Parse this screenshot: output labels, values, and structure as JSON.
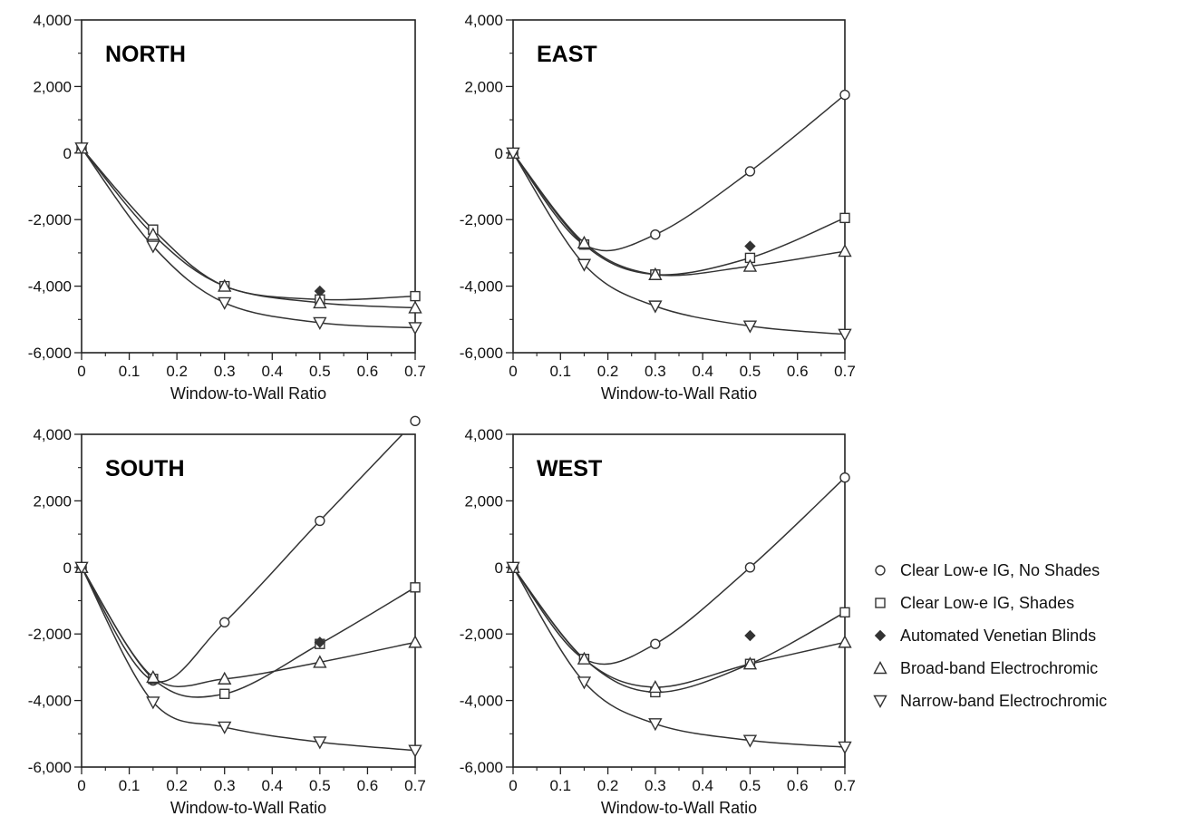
{
  "chart_data": [
    {
      "type": "line",
      "panel_label": "NORTH",
      "xlabel": "Window-to-Wall Ratio",
      "ylabel": "",
      "xlim": [
        0,
        0.7
      ],
      "ylim": [
        -6000,
        4000
      ],
      "xticks": [
        "0",
        "0.1",
        "0.2",
        "0.3",
        "0.4",
        "0.5",
        "0.6",
        "0.7"
      ],
      "yticks": [
        "4,000",
        "2,000",
        "0",
        "-2,000",
        "-4,000",
        "-6,000"
      ],
      "grid": false,
      "series": [
        {
          "name": "Clear Low-e IG, Shades",
          "marker": "square",
          "x": [
            0,
            0.15,
            0.3,
            0.5,
            0.7
          ],
          "y": [
            150,
            -2300,
            -4000,
            -4400,
            -4300
          ]
        },
        {
          "name": "Automated Venetian Blinds",
          "marker": "diamond",
          "x": [
            0.5
          ],
          "y": [
            -4150
          ]
        },
        {
          "name": "Broad-band Electrochromic",
          "marker": "triangle-up",
          "x": [
            0,
            0.15,
            0.3,
            0.5,
            0.7
          ],
          "y": [
            150,
            -2450,
            -4000,
            -4500,
            -4650
          ]
        },
        {
          "name": "Narrow-band Electrochromic",
          "marker": "triangle-down",
          "x": [
            0,
            0.15,
            0.3,
            0.5,
            0.7
          ],
          "y": [
            150,
            -2800,
            -4500,
            -5100,
            -5250
          ]
        }
      ]
    },
    {
      "type": "line",
      "panel_label": "EAST",
      "xlabel": "Window-to-Wall Ratio",
      "ylabel": "",
      "xlim": [
        0,
        0.7
      ],
      "ylim": [
        -6000,
        4000
      ],
      "xticks": [
        "0",
        "0.1",
        "0.2",
        "0.3",
        "0.4",
        "0.5",
        "0.6",
        "0.7"
      ],
      "yticks": [
        "4,000",
        "2,000",
        "0",
        "-2,000",
        "-4,000",
        "-6,000"
      ],
      "grid": false,
      "series": [
        {
          "name": "Clear Low-e IG, No Shades",
          "marker": "circle",
          "x": [
            0,
            0.15,
            0.3,
            0.5,
            0.7
          ],
          "y": [
            0,
            -2750,
            -2450,
            -550,
            1750
          ]
        },
        {
          "name": "Clear Low-e IG, Shades",
          "marker": "square",
          "x": [
            0,
            0.15,
            0.3,
            0.5,
            0.7
          ],
          "y": [
            0,
            -2750,
            -3650,
            -3150,
            -1950
          ]
        },
        {
          "name": "Automated Venetian Blinds",
          "marker": "diamond",
          "x": [
            0.5
          ],
          "y": [
            -2800
          ]
        },
        {
          "name": "Broad-band Electrochromic",
          "marker": "triangle-up",
          "x": [
            0,
            0.15,
            0.3,
            0.5,
            0.7
          ],
          "y": [
            0,
            -2700,
            -3650,
            -3400,
            -2950
          ]
        },
        {
          "name": "Narrow-band Electrochromic",
          "marker": "triangle-down",
          "x": [
            0,
            0.15,
            0.3,
            0.5,
            0.7
          ],
          "y": [
            0,
            -3350,
            -4600,
            -5200,
            -5450
          ]
        }
      ]
    },
    {
      "type": "line",
      "panel_label": "SOUTH",
      "xlabel": "Window-to-Wall Ratio",
      "ylabel": "",
      "xlim": [
        0,
        0.7
      ],
      "ylim": [
        -6000,
        4000
      ],
      "xticks": [
        "0",
        "0.1",
        "0.2",
        "0.3",
        "0.4",
        "0.5",
        "0.6",
        "0.7"
      ],
      "yticks": [
        "4,000",
        "2,000",
        "0",
        "-2,000",
        "-4,000",
        "-6,000"
      ],
      "grid": false,
      "series": [
        {
          "name": "Clear Low-e IG, No Shades",
          "marker": "circle",
          "x": [
            0,
            0.15,
            0.3,
            0.5,
            0.7
          ],
          "y": [
            0,
            -3400,
            -1650,
            1400,
            4400
          ]
        },
        {
          "name": "Clear Low-e IG, Shades",
          "marker": "square",
          "x": [
            0,
            0.15,
            0.3,
            0.5,
            0.7
          ],
          "y": [
            0,
            -3350,
            -3800,
            -2300,
            -600
          ]
        },
        {
          "name": "Automated Venetian Blinds",
          "marker": "diamond",
          "x": [
            0.5
          ],
          "y": [
            -2250
          ]
        },
        {
          "name": "Broad-band Electrochromic",
          "marker": "triangle-up",
          "x": [
            0,
            0.15,
            0.3,
            0.5,
            0.7
          ],
          "y": [
            0,
            -3300,
            -3350,
            -2850,
            -2250
          ]
        },
        {
          "name": "Narrow-band Electrochromic",
          "marker": "triangle-down",
          "x": [
            0,
            0.15,
            0.3,
            0.5,
            0.7
          ],
          "y": [
            0,
            -4050,
            -4800,
            -5250,
            -5500
          ]
        }
      ]
    },
    {
      "type": "line",
      "panel_label": "WEST",
      "xlabel": "Window-to-Wall Ratio",
      "ylabel": "",
      "xlim": [
        0,
        0.7
      ],
      "ylim": [
        -6000,
        4000
      ],
      "xticks": [
        "0",
        "0.1",
        "0.2",
        "0.3",
        "0.4",
        "0.5",
        "0.6",
        "0.7"
      ],
      "yticks": [
        "4,000",
        "2,000",
        "0",
        "-2,000",
        "-4,000",
        "-6,000"
      ],
      "grid": false,
      "series": [
        {
          "name": "Clear Low-e IG, No Shades",
          "marker": "circle",
          "x": [
            0,
            0.15,
            0.3,
            0.5,
            0.7
          ],
          "y": [
            0,
            -2750,
            -2300,
            0,
            2700
          ]
        },
        {
          "name": "Clear Low-e IG, Shades",
          "marker": "square",
          "x": [
            0,
            0.15,
            0.3,
            0.5,
            0.7
          ],
          "y": [
            0,
            -2750,
            -3750,
            -2900,
            -1350
          ]
        },
        {
          "name": "Automated Venetian Blinds",
          "marker": "diamond",
          "x": [
            0.5
          ],
          "y": [
            -2050
          ]
        },
        {
          "name": "Broad-band Electrochromic",
          "marker": "triangle-up",
          "x": [
            0,
            0.15,
            0.3,
            0.5,
            0.7
          ],
          "y": [
            0,
            -2750,
            -3600,
            -2900,
            -2250
          ]
        },
        {
          "name": "Narrow-band Electrochromic",
          "marker": "triangle-down",
          "x": [
            0,
            0.15,
            0.3,
            0.5,
            0.7
          ],
          "y": [
            0,
            -3450,
            -4700,
            -5200,
            -5400
          ]
        }
      ]
    }
  ],
  "legend": {
    "placement": "right",
    "entries": [
      {
        "label": "Clear Low-e IG, No Shades",
        "marker": "circle"
      },
      {
        "label": "Clear Low-e IG, Shades",
        "marker": "square"
      },
      {
        "label": "Automated Venetian Blinds",
        "marker": "diamond"
      },
      {
        "label": "Broad-band Electrochromic",
        "marker": "triangle-up"
      },
      {
        "label": "Narrow-band Electrochromic",
        "marker": "triangle-down"
      }
    ]
  },
  "colors": {
    "line": "#333333",
    "marker_fill": "#ffffff",
    "diamond_fill": "#333333"
  }
}
